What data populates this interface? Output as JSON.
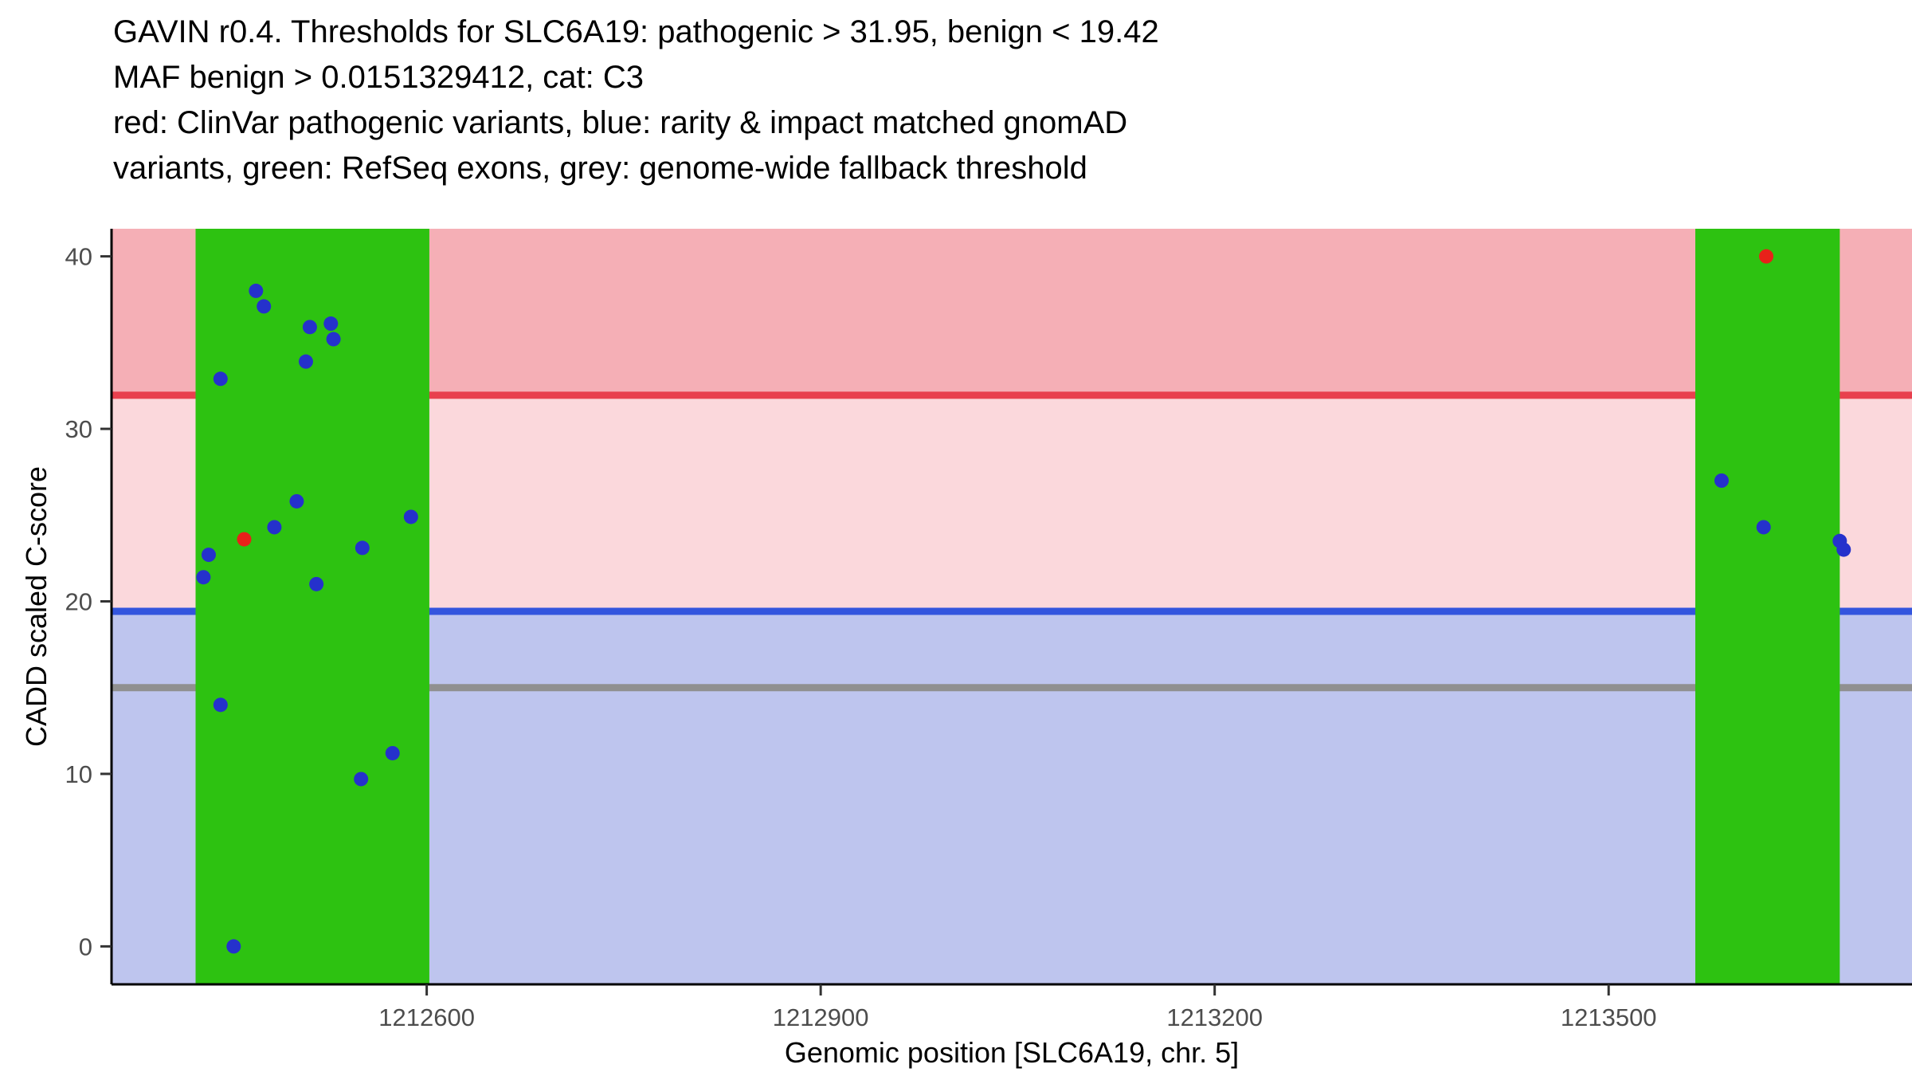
{
  "chart_data": {
    "type": "scatter",
    "title_lines": [
      "GAVIN r0.4. Thresholds for SLC6A19: pathogenic > 31.95, benign < 19.42",
      "MAF benign > 0.0151329412, cat: C3",
      "red: ClinVar pathogenic variants, blue: rarity & impact matched gnomAD",
      "variants, green: RefSeq exons, grey: genome-wide fallback threshold"
    ],
    "xlabel": "Genomic position [SLC6A19, chr. 5]",
    "ylabel": "CADD scaled C-score",
    "gene": "SLC6A19",
    "chromosome": "5",
    "xlim": [
      1212360,
      1213731
    ],
    "ylim": [
      -2.2,
      41.6
    ],
    "x_ticks": [
      1212600,
      1212900,
      1213200,
      1213500
    ],
    "y_ticks": [
      0,
      10,
      20,
      30,
      40
    ],
    "thresholds": {
      "pathogenic_gt": 31.95,
      "benign_lt": 19.42,
      "maf_benign_gt": 0.0151329412,
      "category": "C3",
      "genome_wide_fallback": 15
    },
    "bands": [
      {
        "name": "pathogenic-region",
        "from": 31.95,
        "to": 41.6,
        "color": "#F5AFB6"
      },
      {
        "name": "intermediate-region",
        "from": 19.42,
        "to": 31.95,
        "color": "#FBD8DC"
      },
      {
        "name": "benign-region",
        "from": -2.2,
        "to": 19.42,
        "color": "#BEC5EE"
      }
    ],
    "hlines": [
      {
        "name": "pathogenic-threshold",
        "y": 31.95,
        "color": "#E8404E"
      },
      {
        "name": "benign-threshold",
        "y": 19.42,
        "color": "#3355DE"
      },
      {
        "name": "genome-wide-fallback-threshold",
        "y": 15,
        "color": "#909090"
      }
    ],
    "exons": [
      {
        "name": "refseq-exon-1",
        "from": 1212424,
        "to": 1212602
      },
      {
        "name": "refseq-exon-2",
        "from": 1213566,
        "to": 1213676
      }
    ],
    "exon_color": "#2DC211",
    "series": [
      {
        "name": "rarity & impact matched gnomAD variants",
        "point_name": "gnomad-variant-point",
        "color": "#2531CC",
        "points": [
          [
            1212430,
            21.4
          ],
          [
            1212434,
            22.7
          ],
          [
            1212443,
            32.9
          ],
          [
            1212443,
            14.0
          ],
          [
            1212453,
            0.0
          ],
          [
            1212470,
            38.0
          ],
          [
            1212476,
            37.1
          ],
          [
            1212484,
            24.3
          ],
          [
            1212501,
            25.8
          ],
          [
            1212508,
            33.9
          ],
          [
            1212511,
            35.9
          ],
          [
            1212516,
            21.0
          ],
          [
            1212527,
            36.1
          ],
          [
            1212529,
            35.2
          ],
          [
            1212550,
            9.7
          ],
          [
            1212551,
            23.1
          ],
          [
            1212574,
            11.2
          ],
          [
            1212588,
            24.9
          ],
          [
            1213586,
            27.0
          ],
          [
            1213618,
            24.3
          ],
          [
            1213676,
            23.5
          ],
          [
            1213679,
            23.0
          ]
        ]
      },
      {
        "name": "ClinVar pathogenic variants",
        "point_name": "clinvar-pathogenic-point",
        "color": "#E8211A",
        "points": [
          [
            1212461,
            23.6
          ],
          [
            1213620,
            40.0
          ]
        ]
      }
    ],
    "axis_color": "#000000",
    "tick_color": "#333333",
    "tick_label_color": "#4D4D4D"
  }
}
